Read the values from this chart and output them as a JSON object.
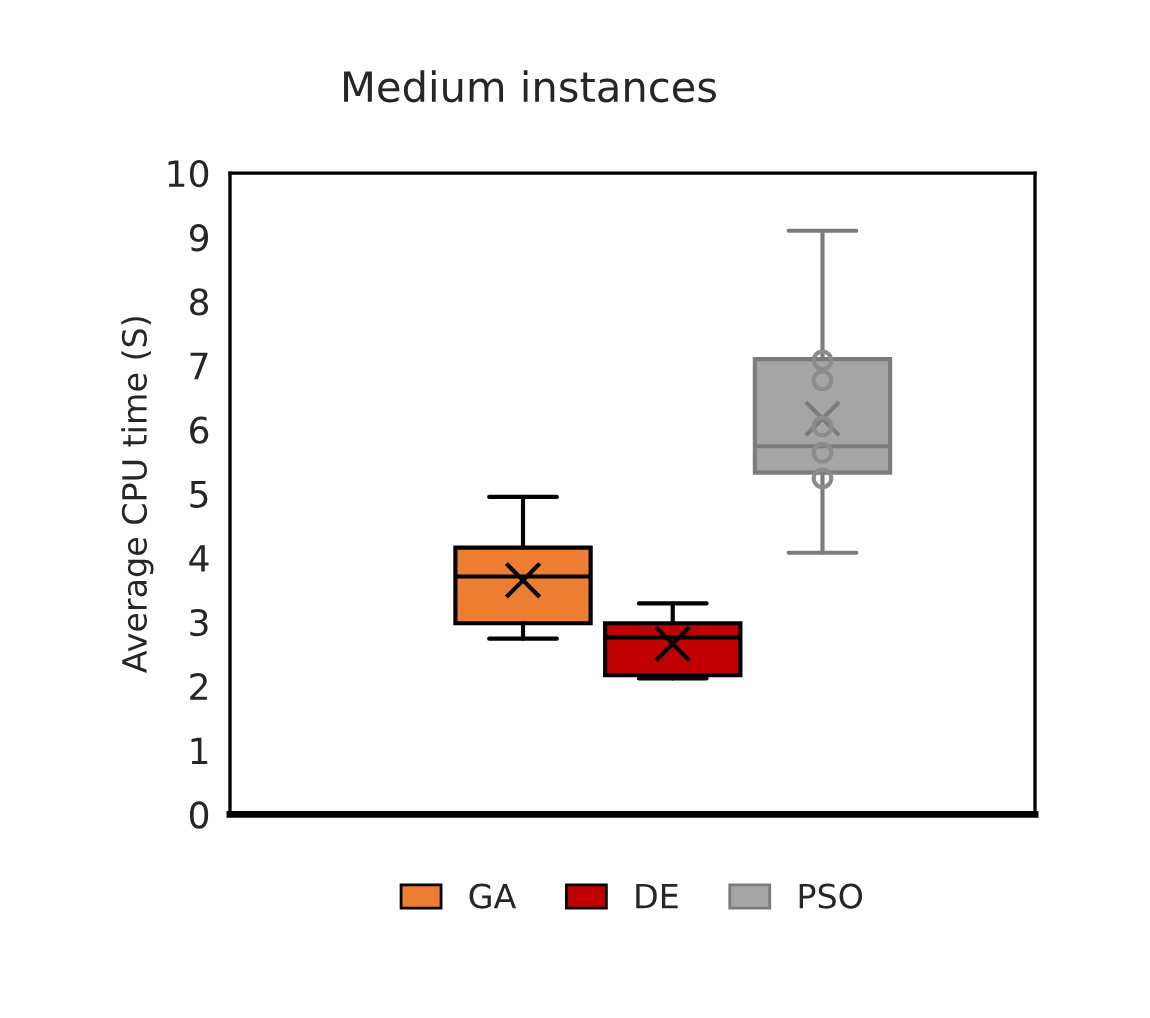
{
  "chart_data": {
    "type": "box",
    "title": "Medium instances",
    "ylabel": "Average CPU time (S)",
    "categories": [
      null
    ],
    "series": [
      {
        "name": "GA",
        "color": "#ed7d31",
        "boxes": [
          {
            "low": 2.74,
            "q1": 2.98,
            "median": 3.71,
            "q3": 4.16,
            "high": 4.95,
            "mean": 3.65
          }
        ]
      },
      {
        "name": "DE",
        "color": "#c00000",
        "boxes": [
          {
            "low": 2.12,
            "q1": 2.17,
            "median": 2.76,
            "q3": 2.98,
            "high": 3.29,
            "mean": 2.66
          }
        ]
      },
      {
        "name": "PSO",
        "color": "#a5a5a5",
        "boxes": [
          {
            "low": 4.08,
            "q1": 5.33,
            "median": 5.74,
            "q3": 7.1,
            "high": 9.1,
            "mean": 6.17
          }
        ]
      },
      {
        "type": "scatter",
        "color": "#8c8c8c",
        "x": [
          null,
          null,
          null,
          null,
          null
        ],
        "values": [
          7.08,
          6.77,
          6.05,
          5.64,
          5.24
        ]
      }
    ],
    "ylim": [
      0,
      10
    ],
    "yticks": [
      0,
      1,
      2,
      3,
      4,
      5,
      6,
      7,
      8,
      9,
      10
    ],
    "grid": false,
    "legend": "bottom"
  }
}
